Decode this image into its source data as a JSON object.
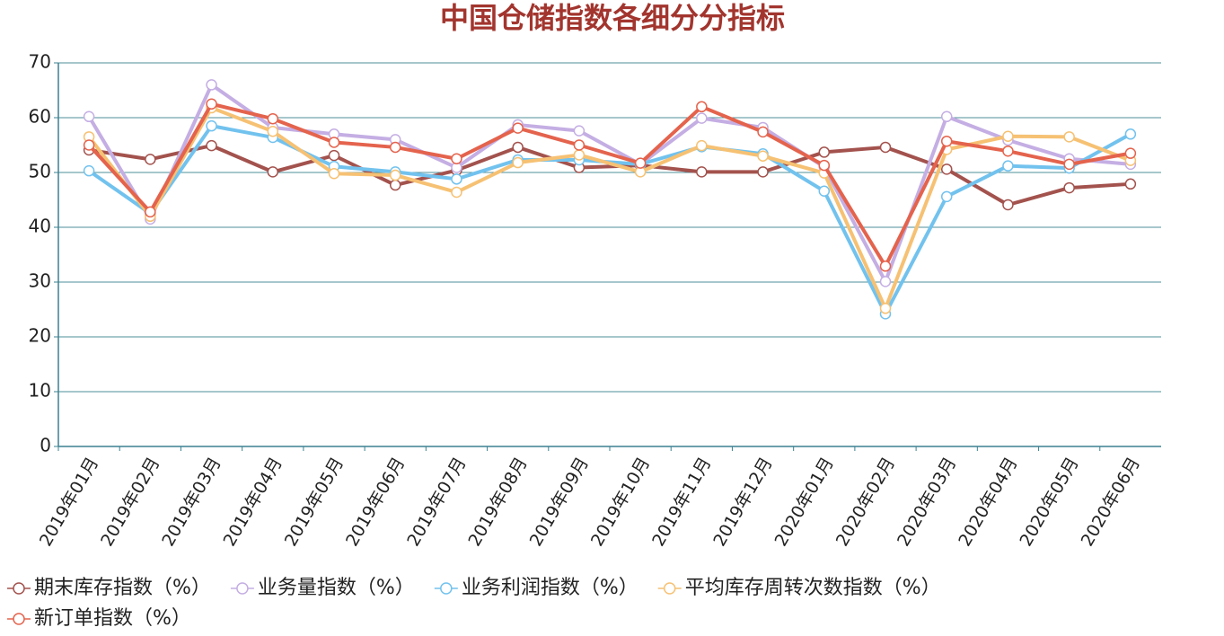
{
  "chart_data": {
    "type": "line",
    "title": "中国仓储指数各细分分指标",
    "categories": [
      "2019年01月",
      "2019年02月",
      "2019年03月",
      "2019年04月",
      "2019年05月",
      "2019年06月",
      "2019年07月",
      "2019年08月",
      "2019年09月",
      "2019年10月",
      "2019年11月",
      "2019年12月",
      "2020年01月",
      "2020年02月",
      "2020年03月",
      "2020年04月",
      "2020年05月",
      "2020年06月"
    ],
    "series": [
      {
        "name": "期末库存指数（%）",
        "color": "#a3524d",
        "values": [
          54.1,
          52.4,
          54.9,
          50.1,
          53.1,
          47.7,
          50.4,
          54.6,
          50.9,
          51.3,
          50.1,
          50.1,
          53.7,
          54.6,
          50.6,
          44.1,
          47.2,
          47.9
        ]
      },
      {
        "name": "业务量指数（%）",
        "color": "#c4aee3",
        "values": [
          60.2,
          41.5,
          66.0,
          58.2,
          57.0,
          56.0,
          50.9,
          58.7,
          57.6,
          51.5,
          59.9,
          58.2,
          51.0,
          30.1,
          60.2,
          55.9,
          52.5,
          51.5
        ]
      },
      {
        "name": "业务利润指数（%）",
        "color": "#72c2ee",
        "values": [
          50.3,
          42.5,
          58.5,
          56.4,
          51.1,
          50.1,
          48.8,
          52.3,
          52.3,
          51.5,
          54.7,
          53.4,
          46.6,
          24.2,
          45.6,
          51.2,
          50.8,
          57.0
        ]
      },
      {
        "name": "平均库存周转次数指数（%）",
        "color": "#f6c173",
        "values": [
          56.5,
          42.0,
          61.8,
          57.5,
          49.8,
          49.5,
          46.4,
          51.8,
          53.2,
          50.1,
          54.9,
          53.0,
          49.9,
          25.2,
          54.2,
          56.6,
          56.5,
          52.2
        ]
      },
      {
        "name": "新订单指数（%）",
        "color": "#e4634d",
        "values": [
          55.0,
          42.8,
          62.5,
          59.8,
          55.5,
          54.6,
          52.5,
          58.1,
          55.0,
          51.7,
          62.0,
          57.4,
          51.3,
          32.9,
          55.7,
          53.9,
          51.5,
          53.5
        ]
      }
    ],
    "ylim": [
      0,
      70
    ],
    "yticks": [
      0,
      10,
      20,
      30,
      40,
      50,
      60,
      70
    ],
    "grid": true
  }
}
